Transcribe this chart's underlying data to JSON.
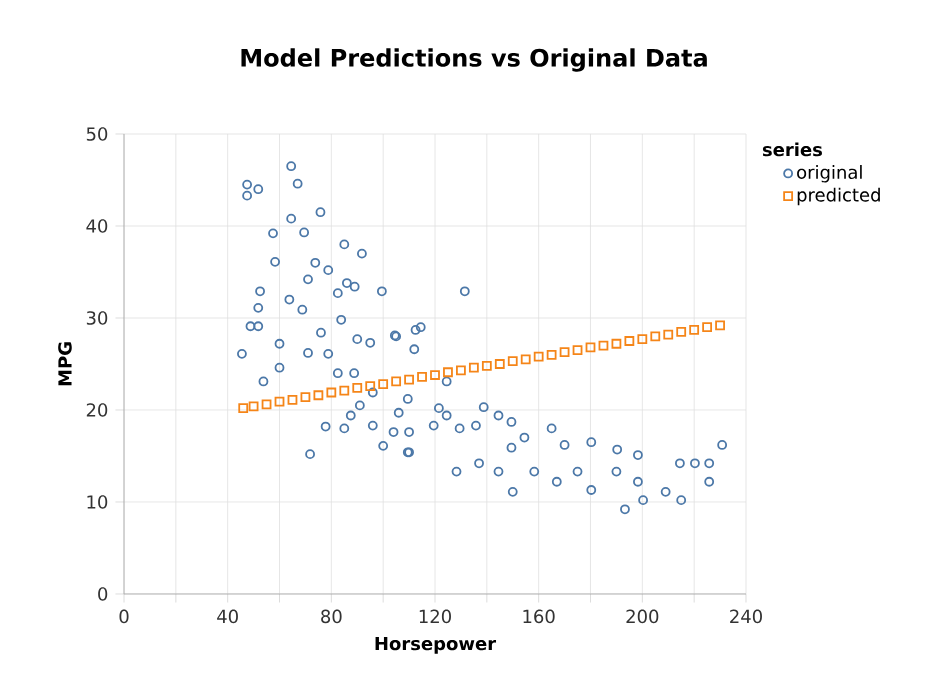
{
  "chart_data": {
    "type": "scatter",
    "title": "Model Predictions vs Original Data",
    "xlabel": "Horsepower",
    "ylabel": "MPG",
    "legend_title": "series",
    "xlim": [
      0,
      240
    ],
    "ylim": [
      0,
      50
    ],
    "xticks": [
      0,
      {
        "value": 20,
        "label": null
      },
      40,
      {
        "value": 60,
        "label": null
      },
      80,
      {
        "value": 100,
        "label": null
      },
      120,
      {
        "value": 140,
        "label": null
      },
      160,
      {
        "value": 180,
        "label": null
      },
      200,
      {
        "value": 220,
        "label": null
      },
      240
    ],
    "yticks": [
      0,
      10,
      20,
      30,
      40,
      50
    ],
    "grid": true,
    "legend": "top right",
    "series": [
      {
        "name": "original",
        "color": "#4c78a8",
        "marker": "circle",
        "x": [
          47.5,
          47.5,
          51.8,
          64.5,
          67,
          75.8,
          64.5,
          57.5,
          69.5,
          85,
          91.8,
          58.3,
          45.5,
          48.8,
          51.8,
          52.5,
          51.8,
          53.8,
          60,
          60,
          63.8,
          68.8,
          71,
          73.8,
          78.8,
          82.5,
          86,
          89,
          76,
          71,
          78.8,
          83.8,
          90,
          95,
          99.5,
          105,
          112.5,
          77.8,
          71.8,
          85,
          87.5,
          91,
          96,
          100,
          104,
          110,
          110,
          96,
          88.8,
          82.5,
          106,
          131.5,
          114.5,
          112,
          124.5,
          121.5,
          124.5,
          119.5,
          129.5,
          135.8,
          138.8,
          144.5,
          149.5,
          154.5,
          165,
          170,
          180.3,
          190.3,
          198.3,
          214.5,
          220.3,
          225.8,
          230.8,
          128.3,
          137,
          144.5,
          150,
          149.5,
          158.3,
          167,
          175,
          180.3,
          190,
          193.3,
          200.3,
          209,
          215,
          225.8,
          198.3,
          109.5,
          109.5,
          104.5
        ],
        "values": [
          44.5,
          43.3,
          44,
          46.5,
          44.6,
          41.5,
          40.8,
          39.2,
          39.3,
          38,
          37,
          36.1,
          26.1,
          29.1,
          29.1,
          32.9,
          31.1,
          23.1,
          27.2,
          24.6,
          32,
          30.9,
          34.2,
          36,
          35.2,
          32.7,
          33.8,
          33.4,
          28.4,
          26.2,
          26.1,
          29.8,
          27.7,
          27.3,
          32.9,
          28,
          28.7,
          18.2,
          15.2,
          18,
          19.4,
          20.5,
          18.3,
          16.1,
          17.6,
          15.4,
          17.6,
          21.9,
          24,
          24,
          19.7,
          32.9,
          29,
          26.6,
          23.1,
          20.2,
          19.4,
          18.3,
          18,
          18.3,
          20.3,
          19.4,
          18.7,
          17,
          18,
          16.2,
          16.5,
          15.7,
          15.1,
          14.2,
          14.2,
          14.2,
          16.2,
          13.3,
          14.2,
          13.3,
          11.1,
          15.9,
          13.3,
          12.2,
          13.3,
          11.3,
          13.3,
          9.2,
          10.2,
          11.1,
          10.2,
          12.2,
          12.2,
          15.4,
          21.2,
          28.1
        ]
      },
      {
        "name": "predicted",
        "color": "#f58518",
        "marker": "square",
        "x": [
          46,
          50,
          55,
          60,
          65,
          70,
          75,
          80,
          85,
          90,
          95,
          100,
          105,
          110,
          115,
          120,
          125,
          130,
          135,
          140,
          145,
          150,
          155,
          160,
          165,
          170,
          175,
          180,
          185,
          190,
          195,
          200,
          205,
          210,
          215,
          220,
          225,
          230
        ],
        "values": [
          20.2,
          20.4,
          20.6,
          20.9,
          21.1,
          21.4,
          21.6,
          21.9,
          22.1,
          22.4,
          22.6,
          22.8,
          23.1,
          23.3,
          23.6,
          23.8,
          24.1,
          24.3,
          24.6,
          24.8,
          25.0,
          25.3,
          25.5,
          25.8,
          26.0,
          26.3,
          26.5,
          26.8,
          27.0,
          27.2,
          27.5,
          27.7,
          28.0,
          28.2,
          28.5,
          28.7,
          29.0,
          29.2
        ]
      }
    ]
  }
}
